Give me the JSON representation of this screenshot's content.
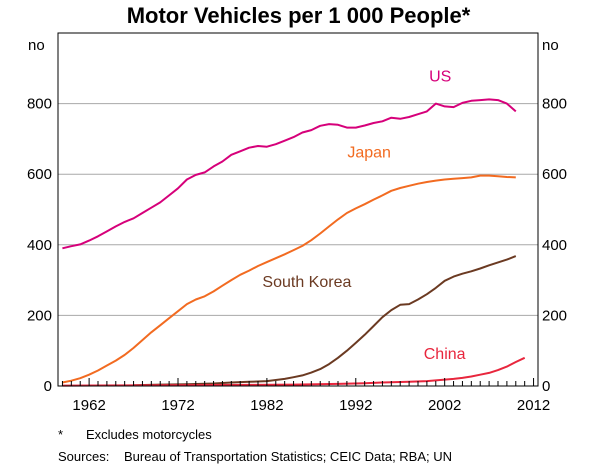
{
  "chart_data": {
    "type": "line",
    "title": "Motor Vehicles per 1 000 People*",
    "y_unit_left": "no",
    "y_unit_right": "no",
    "xlim": [
      1958.5,
      2012.5
    ],
    "ylim": [
      0,
      1000
    ],
    "y_ticks": [
      0,
      200,
      400,
      600,
      800
    ],
    "x_ticks": [
      1962,
      1972,
      1982,
      1992,
      2002,
      2012
    ],
    "grid": true,
    "legend": "inline labels",
    "series": [
      {
        "name": "US",
        "color": "#d6007a",
        "label_at": [
          2001.5,
          862
        ],
        "points": [
          [
            1959,
            390
          ],
          [
            1960,
            396
          ],
          [
            1961,
            401
          ],
          [
            1962,
            412
          ],
          [
            1963,
            424
          ],
          [
            1964,
            438
          ],
          [
            1965,
            452
          ],
          [
            1966,
            465
          ],
          [
            1967,
            475
          ],
          [
            1968,
            490
          ],
          [
            1969,
            505
          ],
          [
            1970,
            520
          ],
          [
            1971,
            540
          ],
          [
            1972,
            560
          ],
          [
            1973,
            585
          ],
          [
            1974,
            598
          ],
          [
            1975,
            605
          ],
          [
            1976,
            622
          ],
          [
            1977,
            636
          ],
          [
            1978,
            655
          ],
          [
            1979,
            665
          ],
          [
            1980,
            675
          ],
          [
            1981,
            680
          ],
          [
            1982,
            678
          ],
          [
            1983,
            685
          ],
          [
            1984,
            695
          ],
          [
            1985,
            705
          ],
          [
            1986,
            718
          ],
          [
            1987,
            725
          ],
          [
            1988,
            737
          ],
          [
            1989,
            742
          ],
          [
            1990,
            740
          ],
          [
            1991,
            732
          ],
          [
            1992,
            732
          ],
          [
            1993,
            738
          ],
          [
            1994,
            745
          ],
          [
            1995,
            750
          ],
          [
            1996,
            760
          ],
          [
            1997,
            757
          ],
          [
            1998,
            762
          ],
          [
            1999,
            770
          ],
          [
            2000,
            778
          ],
          [
            2001,
            800
          ],
          [
            2002,
            792
          ],
          [
            2003,
            790
          ],
          [
            2004,
            802
          ],
          [
            2005,
            808
          ],
          [
            2006,
            810
          ],
          [
            2007,
            812
          ],
          [
            2008,
            810
          ],
          [
            2009,
            800
          ],
          [
            2010,
            778
          ]
        ]
      },
      {
        "name": "Japan",
        "color": "#f26b21",
        "label_at": [
          1993.5,
          648
        ],
        "points": [
          [
            1959,
            10
          ],
          [
            1960,
            15
          ],
          [
            1961,
            22
          ],
          [
            1962,
            32
          ],
          [
            1963,
            44
          ],
          [
            1964,
            58
          ],
          [
            1965,
            72
          ],
          [
            1966,
            88
          ],
          [
            1967,
            108
          ],
          [
            1968,
            130
          ],
          [
            1969,
            152
          ],
          [
            1970,
            172
          ],
          [
            1971,
            192
          ],
          [
            1972,
            212
          ],
          [
            1973,
            232
          ],
          [
            1974,
            245
          ],
          [
            1975,
            254
          ],
          [
            1976,
            268
          ],
          [
            1977,
            284
          ],
          [
            1978,
            300
          ],
          [
            1979,
            315
          ],
          [
            1980,
            327
          ],
          [
            1981,
            340
          ],
          [
            1982,
            351
          ],
          [
            1983,
            362
          ],
          [
            1984,
            373
          ],
          [
            1985,
            385
          ],
          [
            1986,
            397
          ],
          [
            1987,
            413
          ],
          [
            1988,
            432
          ],
          [
            1989,
            452
          ],
          [
            1990,
            472
          ],
          [
            1991,
            490
          ],
          [
            1992,
            503
          ],
          [
            1993,
            515
          ],
          [
            1994,
            528
          ],
          [
            1995,
            540
          ],
          [
            1996,
            553
          ],
          [
            1997,
            561
          ],
          [
            1998,
            567
          ],
          [
            1999,
            573
          ],
          [
            2000,
            578
          ],
          [
            2001,
            582
          ],
          [
            2002,
            585
          ],
          [
            2003,
            587
          ],
          [
            2004,
            589
          ],
          [
            2005,
            591
          ],
          [
            2006,
            596
          ],
          [
            2007,
            596
          ],
          [
            2008,
            594
          ],
          [
            2009,
            592
          ],
          [
            2010,
            591
          ]
        ]
      },
      {
        "name": "South Korea",
        "color": "#6b3a22",
        "label_at": [
          1986.5,
          280
        ],
        "points": [
          [
            1967,
            2
          ],
          [
            1970,
            4
          ],
          [
            1973,
            5
          ],
          [
            1976,
            7
          ],
          [
            1978,
            10
          ],
          [
            1980,
            12
          ],
          [
            1982,
            14
          ],
          [
            1984,
            20
          ],
          [
            1985,
            25
          ],
          [
            1986,
            30
          ],
          [
            1987,
            38
          ],
          [
            1988,
            48
          ],
          [
            1989,
            62
          ],
          [
            1990,
            80
          ],
          [
            1991,
            100
          ],
          [
            1992,
            122
          ],
          [
            1993,
            145
          ],
          [
            1994,
            170
          ],
          [
            1995,
            195
          ],
          [
            1996,
            215
          ],
          [
            1997,
            230
          ],
          [
            1998,
            232
          ],
          [
            1999,
            245
          ],
          [
            2000,
            260
          ],
          [
            2001,
            278
          ],
          [
            2002,
            298
          ],
          [
            2003,
            310
          ],
          [
            2004,
            318
          ],
          [
            2005,
            325
          ],
          [
            2006,
            333
          ],
          [
            2007,
            342
          ],
          [
            2008,
            350
          ],
          [
            2009,
            358
          ],
          [
            2010,
            368
          ]
        ]
      },
      {
        "name": "China",
        "color": "#e8263d",
        "label_at": [
          2002,
          76
        ],
        "points": [
          [
            1959,
            1
          ],
          [
            1970,
            2
          ],
          [
            1980,
            3
          ],
          [
            1985,
            4
          ],
          [
            1990,
            6
          ],
          [
            1993,
            8
          ],
          [
            1995,
            10
          ],
          [
            1998,
            12
          ],
          [
            2000,
            14
          ],
          [
            2002,
            18
          ],
          [
            2003,
            20
          ],
          [
            2004,
            23
          ],
          [
            2005,
            27
          ],
          [
            2006,
            32
          ],
          [
            2007,
            37
          ],
          [
            2008,
            45
          ],
          [
            2009,
            55
          ],
          [
            2010,
            68
          ],
          [
            2011,
            80
          ]
        ]
      }
    ]
  },
  "footnote": {
    "mark": "*",
    "text": "Excludes motorcycles"
  },
  "sources": {
    "label": "Sources:",
    "text": "Bureau of Transportation Statistics; CEIC Data; RBA; UN"
  }
}
